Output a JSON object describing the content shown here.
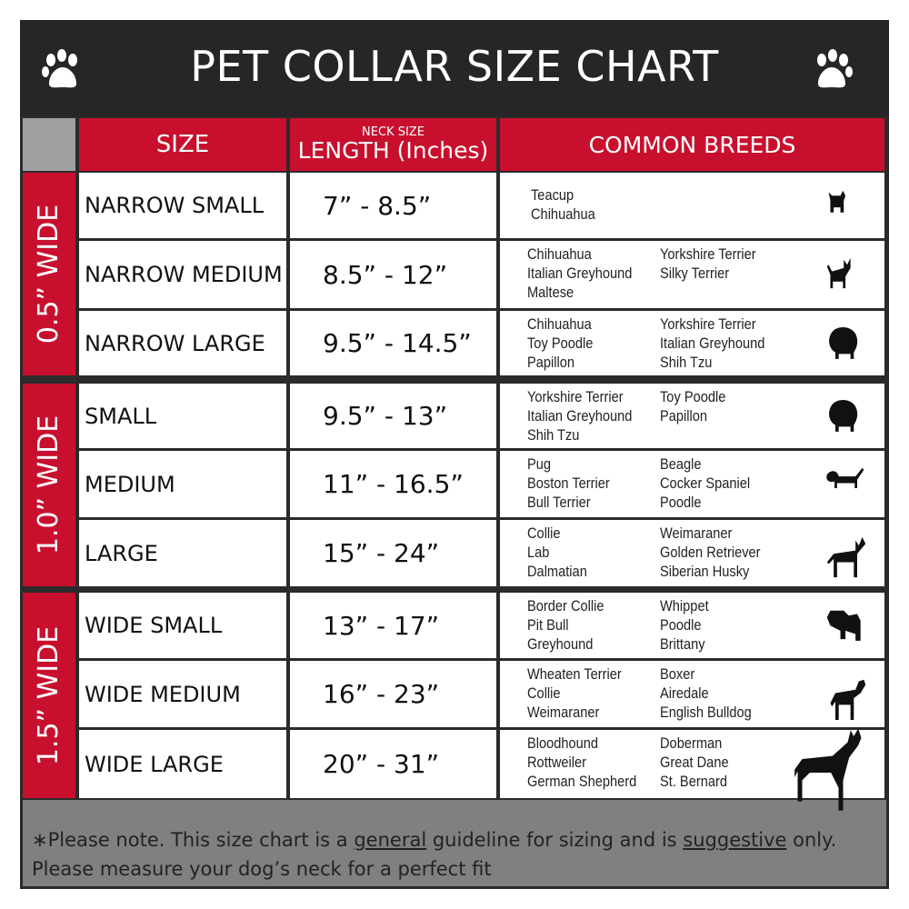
{
  "title": "PET COLLAR SIZE CHART",
  "headers": {
    "size": "SIZE",
    "length_small": "NECK SIZE",
    "length": "LENGTH (Inches)",
    "breeds": "COMMON BREEDS"
  },
  "groups": [
    "0.5” WIDE",
    "1.0” WIDE",
    "1.5” WIDE"
  ],
  "rows": [
    {
      "size": "NARROW SMALL",
      "length": "7” - 8.5”",
      "col1": [
        "Teacup",
        "Chihuahua"
      ],
      "col2": [],
      "icon": "yorkie-silhouette-icon"
    },
    {
      "size": "NARROW MEDIUM",
      "length": "8.5” - 12”",
      "col1": [
        "Chihuahua",
        "Italian Greyhound",
        "Maltese"
      ],
      "col2": [
        "Yorkshire Terrier",
        "Silky Terrier"
      ],
      "icon": "chihuahua-silhouette-icon"
    },
    {
      "size": "NARROW LARGE",
      "length": "9.5” - 14.5”",
      "col1": [
        "Chihuahua",
        "Toy Poodle",
        "Papillon"
      ],
      "col2": [
        "Yorkshire Terrier",
        "Italian Greyhound",
        "Shih Tzu"
      ],
      "icon": "pomeranian-silhouette-icon"
    },
    {
      "size": "SMALL",
      "length": "9.5” - 13”",
      "col1": [
        "Yorkshire Terrier",
        "Italian Greyhound",
        "Shih Tzu"
      ],
      "col2": [
        "Toy Poodle",
        "Papillon"
      ],
      "icon": "pomeranian-silhouette-icon"
    },
    {
      "size": "MEDIUM",
      "length": "11” - 16.5”",
      "col1": [
        "Pug",
        "Boston Terrier",
        "Bull Terrier"
      ],
      "col2": [
        "Beagle",
        "Cocker Spaniel",
        "Poodle"
      ],
      "icon": "dachshund-silhouette-icon"
    },
    {
      "size": "LARGE",
      "length": "15” - 24”",
      "col1": [
        "Collie",
        "Lab",
        "Dalmatian"
      ],
      "col2": [
        "Weimaraner",
        "Golden Retriever",
        "Siberian Husky"
      ],
      "icon": "shepherd-silhouette-icon"
    },
    {
      "size": "WIDE SMALL",
      "length": "13” - 17”",
      "col1": [
        "Border Collie",
        "Pit Bull",
        "Greyhound"
      ],
      "col2": [
        "Whippet",
        "Poodle",
        "Brittany"
      ],
      "icon": "bulldog-silhouette-icon"
    },
    {
      "size": "WIDE MEDIUM",
      "length": "16” - 23”",
      "col1": [
        "Wheaten Terrier",
        "Collie",
        "Weimaraner"
      ],
      "col2": [
        "Boxer",
        "Airedale",
        "English Bulldog"
      ],
      "icon": "pitbull-silhouette-icon"
    },
    {
      "size": "WIDE LARGE",
      "length": "20” - 31”",
      "col1": [
        "Bloodhound",
        "Rottweiler",
        "German Shepherd"
      ],
      "col2": [
        "Doberman",
        "Great Dane",
        "St. Bernard"
      ],
      "icon": "doberman-silhouette-icon"
    }
  ],
  "footer": {
    "star": "∗",
    "part1": "Please note. This size chart is a ",
    "general": "general",
    "part2": " guideline for sizing and is ",
    "suggestive": "suggestive",
    "part3": " only.",
    "line2": "Please measure your dog’s neck for a perfect fit"
  },
  "colors": {
    "accent": "#c8102e",
    "header_bg": "#262626",
    "footer_bg": "#808080"
  }
}
